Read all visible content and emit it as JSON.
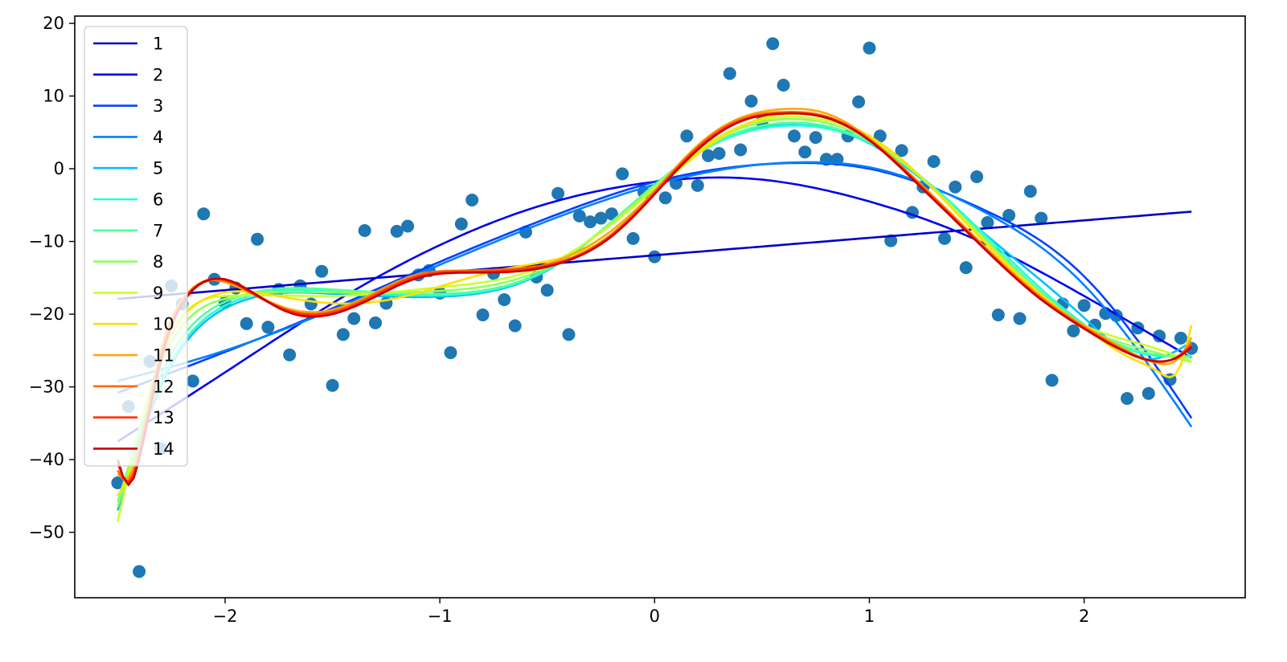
{
  "chart_data": {
    "type": "line",
    "title": "",
    "xlabel": "",
    "ylabel": "",
    "xlim": [
      -2.7,
      2.75
    ],
    "ylim": [
      -59,
      21
    ],
    "grid": false,
    "legend_position": "top-left",
    "x_ticks": [
      -2,
      -1,
      0,
      1,
      2
    ],
    "x_tick_labels": [
      "−2",
      "−1",
      "0",
      "1",
      "2"
    ],
    "y_ticks": [
      20,
      10,
      0,
      -10,
      -20,
      -30,
      -40,
      -50
    ],
    "y_tick_labels": [
      "20",
      "10",
      "0",
      "−10",
      "−20",
      "−30",
      "−40",
      "−50"
    ],
    "scatter": {
      "color": "#1f77b4",
      "points": [
        [
          -2.5,
          -43.2
        ],
        [
          -2.45,
          -32.7
        ],
        [
          -2.4,
          -55.4
        ],
        [
          -2.35,
          -26.5
        ],
        [
          -2.3,
          -38.5
        ],
        [
          -2.25,
          -16.1
        ],
        [
          -2.2,
          -18.6
        ],
        [
          -2.15,
          -29.2
        ],
        [
          -2.1,
          -6.2
        ],
        [
          -2.05,
          -15.2
        ],
        [
          -2.0,
          -18.4
        ],
        [
          -1.95,
          -16.4
        ],
        [
          -1.9,
          -21.3
        ],
        [
          -1.85,
          -9.7
        ],
        [
          -1.8,
          -21.8
        ],
        [
          -1.75,
          -16.6
        ],
        [
          -1.7,
          -25.6
        ],
        [
          -1.65,
          -16.1
        ],
        [
          -1.6,
          -18.6
        ],
        [
          -1.55,
          -14.1
        ],
        [
          -1.5,
          -29.8
        ],
        [
          -1.45,
          -22.8
        ],
        [
          -1.4,
          -20.6
        ],
        [
          -1.35,
          -8.5
        ],
        [
          -1.3,
          -21.2
        ],
        [
          -1.25,
          -18.5
        ],
        [
          -1.2,
          -8.6
        ],
        [
          -1.15,
          -7.9
        ],
        [
          -1.1,
          -14.6
        ],
        [
          -1.05,
          -14.0
        ],
        [
          -1.0,
          -17.1
        ],
        [
          -0.95,
          -25.3
        ],
        [
          -0.9,
          -7.6
        ],
        [
          -0.85,
          -4.3
        ],
        [
          -0.8,
          -20.1
        ],
        [
          -0.75,
          -14.4
        ],
        [
          -0.7,
          -18.0
        ],
        [
          -0.65,
          -21.6
        ],
        [
          -0.6,
          -8.7
        ],
        [
          -0.55,
          -14.9
        ],
        [
          -0.5,
          -16.7
        ],
        [
          -0.45,
          -3.4
        ],
        [
          -0.4,
          -22.8
        ],
        [
          -0.35,
          -6.5
        ],
        [
          -0.3,
          -7.3
        ],
        [
          -0.25,
          -6.8
        ],
        [
          -0.2,
          -6.2
        ],
        [
          -0.15,
          -0.7
        ],
        [
          -0.1,
          -9.6
        ],
        [
          -0.05,
          -3.2
        ],
        [
          0.0,
          -12.1
        ],
        [
          0.05,
          -4.0
        ],
        [
          0.1,
          -2.0
        ],
        [
          0.15,
          4.5
        ],
        [
          0.2,
          -2.3
        ],
        [
          0.25,
          1.8
        ],
        [
          0.3,
          2.1
        ],
        [
          0.35,
          13.1
        ],
        [
          0.4,
          2.6
        ],
        [
          0.45,
          9.3
        ],
        [
          0.5,
          6.5
        ],
        [
          0.55,
          17.2
        ],
        [
          0.6,
          11.5
        ],
        [
          0.65,
          4.5
        ],
        [
          0.7,
          2.3
        ],
        [
          0.75,
          4.3
        ],
        [
          0.8,
          1.3
        ],
        [
          0.85,
          1.3
        ],
        [
          0.9,
          4.5
        ],
        [
          0.95,
          9.2
        ],
        [
          1.0,
          16.6
        ],
        [
          1.05,
          4.5
        ],
        [
          1.1,
          -9.9
        ],
        [
          1.15,
          2.5
        ],
        [
          1.2,
          -6.0
        ],
        [
          1.25,
          -2.5
        ],
        [
          1.3,
          1.0
        ],
        [
          1.35,
          -9.6
        ],
        [
          1.4,
          -2.5
        ],
        [
          1.45,
          -13.6
        ],
        [
          1.5,
          -1.1
        ],
        [
          1.55,
          -7.4
        ],
        [
          1.6,
          -20.1
        ],
        [
          1.65,
          -6.4
        ],
        [
          1.7,
          -20.6
        ],
        [
          1.75,
          -3.1
        ],
        [
          1.8,
          -6.8
        ],
        [
          1.85,
          -29.1
        ],
        [
          1.9,
          -18.6
        ],
        [
          1.95,
          -22.3
        ],
        [
          2.0,
          -18.8
        ],
        [
          2.05,
          -21.5
        ],
        [
          2.1,
          -19.9
        ],
        [
          2.15,
          -20.2
        ],
        [
          2.2,
          -31.6
        ],
        [
          2.25,
          -21.9
        ],
        [
          2.3,
          -30.9
        ],
        [
          2.35,
          -23.0
        ],
        [
          2.4,
          -29.0
        ],
        [
          2.45,
          -23.3
        ],
        [
          2.5,
          -24.7
        ]
      ]
    },
    "curve_x_range": [
      -2.5,
      2.5
    ],
    "series": [
      {
        "name": "1",
        "color": "#0000c8",
        "x": [
          -2.5,
          2.5
        ],
        "y": [
          -17.9,
          -5.9
        ]
      },
      {
        "name": "2",
        "color": "#0000f1",
        "x": [
          -2.5,
          -2.0,
          -1.5,
          -1.0,
          -0.5,
          0.0,
          0.3,
          0.5,
          1.0,
          1.5,
          2.0,
          2.5
        ],
        "y": [
          -37.5,
          -28.0,
          -18.5,
          -10.5,
          -4.8,
          -1.8,
          -1.2,
          -1.5,
          -4.5,
          -9.8,
          -17.5,
          -26.0
        ]
      },
      {
        "name": "3",
        "color": "#0040ff",
        "x": [
          -2.5,
          -2.0,
          -1.5,
          -1.0,
          -0.5,
          0.0,
          0.5,
          0.7,
          1.0,
          1.5,
          2.0,
          2.5
        ],
        "y": [
          -30.8,
          -25.2,
          -19.2,
          -12.8,
          -6.8,
          -1.8,
          0.6,
          0.8,
          0.0,
          -5.2,
          -14.8,
          -34.3
        ]
      },
      {
        "name": "4",
        "color": "#0080ff",
        "x": [
          -2.5,
          -2.0,
          -1.5,
          -1.0,
          -0.5,
          0.0,
          0.5,
          0.7,
          1.0,
          1.5,
          2.0,
          2.5
        ],
        "y": [
          -29.2,
          -25.0,
          -19.4,
          -13.2,
          -7.2,
          -2.2,
          0.6,
          0.9,
          0.2,
          -5.4,
          -16.0,
          -35.5
        ]
      },
      {
        "name": "5",
        "color": "#00c0ff",
        "x": [
          -2.5,
          -2.3,
          -2.0,
          -1.5,
          -1.0,
          -0.5,
          0.0,
          0.3,
          0.6,
          1.0,
          1.5,
          2.0,
          2.3,
          2.5
        ],
        "y": [
          -47.0,
          -30.0,
          -19.2,
          -17.2,
          -17.6,
          -14.0,
          -2.2,
          3.8,
          6.0,
          3.5,
          -8.0,
          -20.5,
          -26.2,
          -23.8
        ]
      },
      {
        "name": "6",
        "color": "#26ffd1",
        "x": [
          -2.5,
          -2.3,
          -2.0,
          -1.5,
          -1.0,
          -0.5,
          0.0,
          0.3,
          0.6,
          1.0,
          1.5,
          2.0,
          2.3,
          2.5
        ],
        "y": [
          -46.5,
          -29.5,
          -18.8,
          -16.9,
          -17.4,
          -13.9,
          -2.3,
          3.7,
          5.9,
          3.6,
          -8.0,
          -21.4,
          -25.6,
          -25.7
        ]
      },
      {
        "name": "7",
        "color": "#52ff9c",
        "x": [
          -2.5,
          -2.3,
          -2.0,
          -1.5,
          -1.0,
          -0.5,
          0.0,
          0.3,
          0.6,
          1.0,
          1.5,
          2.0,
          2.3,
          2.5
        ],
        "y": [
          -45.8,
          -28.5,
          -18.3,
          -16.6,
          -17.2,
          -13.8,
          -2.2,
          3.9,
          6.3,
          3.7,
          -8.4,
          -21.6,
          -25.4,
          -25.9
        ]
      },
      {
        "name": "8",
        "color": "#8fff61",
        "x": [
          -2.5,
          -2.3,
          -2.0,
          -1.5,
          -1.0,
          -0.5,
          0.0,
          0.3,
          0.6,
          1.0,
          1.5,
          2.0,
          2.3,
          2.5
        ],
        "y": [
          -46.5,
          -27.0,
          -17.9,
          -17.0,
          -16.8,
          -13.5,
          -2.4,
          4.2,
          6.8,
          4.0,
          -8.6,
          -21.8,
          -25.0,
          -26.6
        ]
      },
      {
        "name": "9",
        "color": "#c8ff2b",
        "x": [
          -2.5,
          -2.3,
          -2.0,
          -1.5,
          -1.0,
          -0.5,
          0.0,
          0.3,
          0.6,
          1.0,
          1.5,
          2.0,
          2.3,
          2.5
        ],
        "y": [
          -48.5,
          -26.0,
          -17.5,
          -17.5,
          -16.3,
          -13.2,
          -2.7,
          4.4,
          7.1,
          4.3,
          -8.8,
          -21.5,
          -24.4,
          -26.5
        ]
      },
      {
        "name": "10",
        "color": "#ffe000",
        "x": [
          -2.5,
          -2.4,
          -2.3,
          -2.15,
          -2.0,
          -1.8,
          -1.5,
          -1.2,
          -1.0,
          -0.7,
          -0.4,
          -0.2,
          0.0,
          0.2,
          0.4,
          0.6,
          0.8,
          1.0,
          1.2,
          1.5,
          1.8,
          2.0,
          2.2,
          2.35,
          2.45,
          2.5
        ],
        "y": [
          -45.0,
          -38.5,
          -27.0,
          -19.0,
          -17.0,
          -17.3,
          -18.5,
          -17.8,
          -16.2,
          -13.8,
          -12.0,
          -9.0,
          -3.2,
          2.0,
          5.8,
          7.5,
          7.0,
          4.5,
          0.0,
          -9.0,
          -17.3,
          -21.8,
          -25.8,
          -28.0,
          -27.0,
          -21.5
        ]
      },
      {
        "name": "11",
        "color": "#ffa600",
        "x": [
          -2.5,
          -2.45,
          -2.4,
          -2.3,
          -2.2,
          -2.1,
          -2.0,
          -1.9,
          -1.7,
          -1.5,
          -1.3,
          -1.1,
          -0.9,
          -0.6,
          -0.4,
          -0.2,
          0.0,
          0.2,
          0.4,
          0.6,
          0.8,
          1.0,
          1.2,
          1.5,
          1.8,
          2.0,
          2.2,
          2.35,
          2.45,
          2.5
        ],
        "y": [
          -42.0,
          -42.5,
          -38.5,
          -25.0,
          -18.0,
          -15.5,
          -15.6,
          -16.8,
          -19.3,
          -19.4,
          -17.0,
          -14.5,
          -14.2,
          -13.8,
          -12.0,
          -8.5,
          -3.0,
          3.2,
          7.0,
          8.2,
          7.6,
          4.2,
          -1.0,
          -9.6,
          -17.6,
          -21.6,
          -25.0,
          -26.8,
          -25.7,
          -23.2
        ]
      },
      {
        "name": "12",
        "color": "#ff6a00",
        "x": [
          -2.5,
          -2.45,
          -2.4,
          -2.3,
          -2.2,
          -2.1,
          -2.0,
          -1.9,
          -1.7,
          -1.5,
          -1.3,
          -1.1,
          -0.9,
          -0.6,
          -0.4,
          -0.2,
          0.0,
          0.2,
          0.4,
          0.6,
          0.8,
          1.0,
          1.2,
          1.5,
          1.8,
          2.0,
          2.2,
          2.35,
          2.45,
          2.5
        ],
        "y": [
          -41.5,
          -43.0,
          -39.0,
          -25.5,
          -18.2,
          -15.6,
          -15.4,
          -16.6,
          -19.5,
          -19.6,
          -17.2,
          -14.6,
          -14.0,
          -13.6,
          -12.4,
          -9.0,
          -3.2,
          3.0,
          6.8,
          7.8,
          7.2,
          4.0,
          -1.2,
          -9.8,
          -17.8,
          -21.8,
          -25.2,
          -26.6,
          -25.5,
          -24.0
        ]
      },
      {
        "name": "13",
        "color": "#ff2e00",
        "x": [
          -2.5,
          -2.45,
          -2.4,
          -2.3,
          -2.2,
          -2.1,
          -2.0,
          -1.9,
          -1.7,
          -1.5,
          -1.3,
          -1.1,
          -0.9,
          -0.6,
          -0.4,
          -0.2,
          0.0,
          0.2,
          0.4,
          0.6,
          0.8,
          1.0,
          1.2,
          1.5,
          1.8,
          2.0,
          2.2,
          2.35,
          2.45,
          2.5
        ],
        "y": [
          -40.5,
          -43.2,
          -39.5,
          -26.0,
          -18.4,
          -15.5,
          -15.3,
          -16.7,
          -19.6,
          -19.8,
          -17.4,
          -14.8,
          -14.2,
          -13.8,
          -12.5,
          -9.2,
          -3.4,
          2.8,
          6.6,
          7.6,
          7.1,
          4.0,
          -1.2,
          -9.9,
          -17.9,
          -21.9,
          -25.2,
          -26.5,
          -25.6,
          -24.3
        ]
      },
      {
        "name": "14",
        "color": "#c80000",
        "x": [
          -2.5,
          -2.45,
          -2.4,
          -2.3,
          -2.2,
          -2.1,
          -2.0,
          -1.9,
          -1.7,
          -1.5,
          -1.3,
          -1.1,
          -0.9,
          -0.6,
          -0.4,
          -0.2,
          0.0,
          0.2,
          0.4,
          0.6,
          0.8,
          1.0,
          1.2,
          1.5,
          1.8,
          2.0,
          2.2,
          2.35,
          2.45,
          2.5
        ],
        "y": [
          -40.0,
          -43.5,
          -40.0,
          -26.5,
          -18.6,
          -15.6,
          -15.2,
          -16.5,
          -19.8,
          -20.0,
          -17.6,
          -15.0,
          -14.3,
          -14.0,
          -12.6,
          -9.3,
          -3.5,
          2.6,
          6.5,
          7.6,
          7.0,
          3.9,
          -1.4,
          -10.0,
          -18.0,
          -22.0,
          -25.3,
          -26.5,
          -25.7,
          -24.5
        ]
      }
    ]
  }
}
